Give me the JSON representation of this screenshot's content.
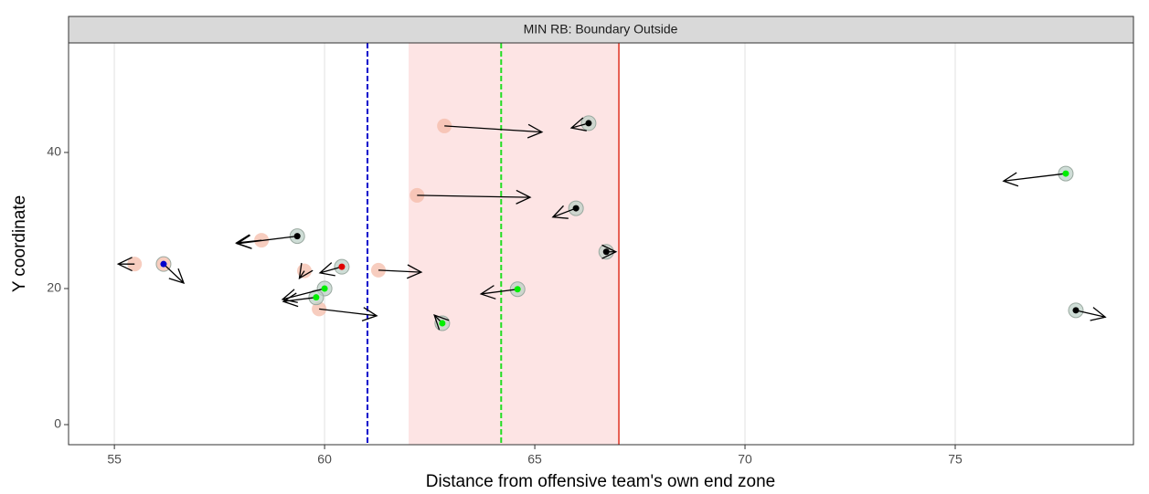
{
  "chart_data": {
    "type": "scatter",
    "title": "MIN RB: Boundary Outside",
    "x_label": "Distance from offensive team's own end zone",
    "y_label": "Y coordinate",
    "xlim": [
      53.91,
      79.24
    ],
    "ylim": [
      -2.95,
      56.1
    ],
    "xticks": [
      55,
      60,
      65,
      70,
      75
    ],
    "yticks": [
      0,
      20,
      40
    ],
    "grid": true,
    "shaded_region": {
      "xmin": 62.0,
      "xmax": 67.0,
      "color": "#fde4e4"
    },
    "vlines": [
      {
        "x": 61.02,
        "color": "#0000cc",
        "dashed": true
      },
      {
        "x": 64.2,
        "color": "#22dd22",
        "dashed": true
      },
      {
        "x": 67.0,
        "color": "#e03020",
        "dashed": false
      }
    ],
    "series": [
      {
        "color": "#f4b8a4",
        "x": [
          62.85,
          62.2,
          61.28,
          55.48,
          56.17,
          58.5,
          59.52,
          59.87
        ],
        "values": [
          43.9,
          33.7,
          22.7,
          23.6,
          23.6,
          27.1,
          22.6,
          17.0
        ],
        "xend": [
          65.17,
          64.89,
          62.3,
          55.09,
          56.65,
          57.9,
          59.4,
          61.24
        ],
        "yend": [
          43.0,
          33.4,
          22.4,
          23.6,
          20.8,
          26.7,
          21.5,
          16.0
        ],
        "dot_colors": [
          null,
          null,
          null,
          null,
          "#0000cc",
          null,
          null,
          null
        ]
      },
      {
        "color": "#b9cfc4",
        "x": [
          59.35,
          60.41,
          60.0,
          59.8,
          66.28,
          65.98,
          66.7,
          64.59,
          62.8,
          77.63,
          77.87
        ],
        "values": [
          27.7,
          23.2,
          20.0,
          18.7,
          44.3,
          31.8,
          25.4,
          19.9,
          14.9,
          36.9,
          16.8
        ],
        "xend": [
          57.92,
          59.89,
          59.0,
          59.02,
          65.87,
          65.43,
          66.93,
          63.72,
          62.61,
          76.15,
          78.57
        ],
        "yend": [
          26.6,
          22.3,
          18.4,
          18.1,
          43.6,
          30.5,
          25.4,
          19.2,
          16.1,
          35.8,
          15.8
        ],
        "dot_colors": [
          "#000000",
          "#e00000",
          "#00ee00",
          "#00ee00",
          "#000000",
          "#000000",
          "#000000",
          "#00ee00",
          "#00ee00",
          "#00ee00",
          "#000000"
        ]
      }
    ]
  }
}
